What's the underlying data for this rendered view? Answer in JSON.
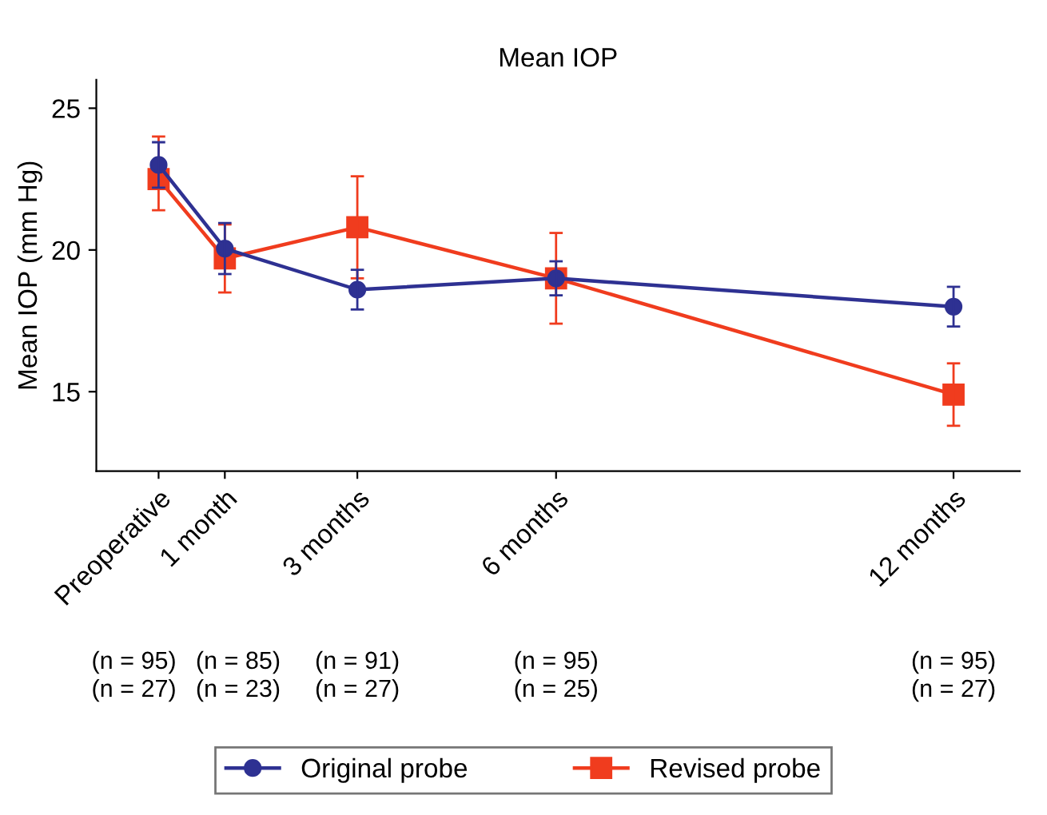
{
  "chart_data": {
    "type": "line",
    "title": "Mean IOP",
    "ylabel": "Mean IOP (mm Hg)",
    "x": [
      0,
      1,
      3,
      6,
      12
    ],
    "xlim": [
      -0.94,
      13
    ],
    "xticks": [
      {
        "value": 0,
        "label": "Preoperative"
      },
      {
        "value": 1,
        "label": "1 month"
      },
      {
        "value": 3,
        "label": "3 months"
      },
      {
        "value": 6,
        "label": "6 months"
      },
      {
        "value": 12,
        "label": "12 months"
      }
    ],
    "ylim": [
      12.2,
      26
    ],
    "yticks": [
      15,
      20,
      25
    ],
    "series": [
      {
        "name": "Original probe",
        "color": "#2e3192",
        "marker": "circle",
        "values": [
          23.0,
          20.05,
          18.6,
          19.0,
          18.0
        ],
        "errors": [
          0.8,
          0.9,
          0.7,
          0.6,
          0.7
        ]
      },
      {
        "name": "Revised probe",
        "color": "#f03c1e",
        "marker": "square",
        "values": [
          22.5,
          19.7,
          20.8,
          19.0,
          14.9
        ],
        "errors": [
          [
            21.4,
            24.0
          ],
          1.2,
          1.8,
          1.6,
          1.1
        ]
      }
    ],
    "annotations": [
      "(n = 95)\n(n = 27)",
      "(n = 85)\n(n = 23)",
      "(n = 91)\n(n = 27)",
      "(n = 95)\n(n = 25)",
      "(n = 95)\n(n = 27)"
    ],
    "legend": "bottom",
    "grid": false,
    "line_style": "solid"
  }
}
